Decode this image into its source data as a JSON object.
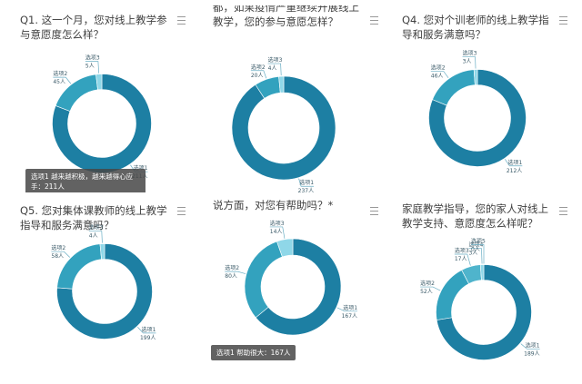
{
  "chart_data": [
    {
      "type": "pie",
      "title": "Q1. 这一个月，您对线上教学参与意愿度怎么样？",
      "categories": [
        "选项1",
        "选项2",
        "选项3"
      ],
      "values": [
        211,
        45,
        5
      ],
      "count_labels": [
        "211人",
        "45人",
        "5人"
      ],
      "tooltip": "选项1 越来越积极，越来越得心应手：211人",
      "colors": [
        "#1d7fa3",
        "#33a2be",
        "#8fd7e8"
      ]
    },
    {
      "type": "pie",
      "title": "都，如果疫情严重继续开展线上教学，您的参与意愿怎样？",
      "categories": [
        "选项1",
        "选项2",
        "选项3"
      ],
      "values": [
        237,
        20,
        4
      ],
      "count_labels": [
        "237人",
        "20人",
        "4人"
      ],
      "colors": [
        "#1d7fa3",
        "#33a2be",
        "#8fd7e8"
      ]
    },
    {
      "type": "pie",
      "title": "Q4. 您对个训老师的线上教学指导和服务满意吗？",
      "categories": [
        "选项1",
        "选项2",
        "选项3"
      ],
      "values": [
        212,
        46,
        3
      ],
      "count_labels": [
        "212人",
        "46人",
        "3人"
      ],
      "colors": [
        "#1d7fa3",
        "#33a2be",
        "#8fd7e8"
      ]
    },
    {
      "type": "pie",
      "title": "Q5. 您对集体课教师的线上教学指导和服务满意吗？",
      "categories": [
        "选项1",
        "选项2",
        "选项3"
      ],
      "values": [
        199,
        58,
        4
      ],
      "count_labels": [
        "199人",
        "58人",
        "4人"
      ],
      "colors": [
        "#1d7fa3",
        "#33a2be",
        "#8fd7e8"
      ]
    },
    {
      "type": "pie",
      "title": "说方面，对您有帮助吗？*",
      "categories": [
        "选项1",
        "选项2",
        "选项3"
      ],
      "values": [
        167,
        80,
        14
      ],
      "count_labels": [
        "167人",
        "80人",
        "14人"
      ],
      "tooltip": "选项1 帮助很大：167人",
      "colors": [
        "#1d7fa3",
        "#33a2be",
        "#8fd7e8"
      ]
    },
    {
      "type": "pie",
      "title": "家庭教学指导，您的家人对线上教学支持、意愿度怎么样呢？",
      "categories": [
        "选项1",
        "选项2",
        "选项3",
        "选项4",
        "选项5"
      ],
      "values": [
        189,
        52,
        17,
        3,
        0
      ],
      "count_labels": [
        "189人",
        "52人",
        "17人",
        "3人",
        "0人"
      ],
      "colors": [
        "#1d7fa3",
        "#33a2be",
        "#4fb4cc",
        "#8fd7e8",
        "#bde9f3"
      ]
    }
  ]
}
